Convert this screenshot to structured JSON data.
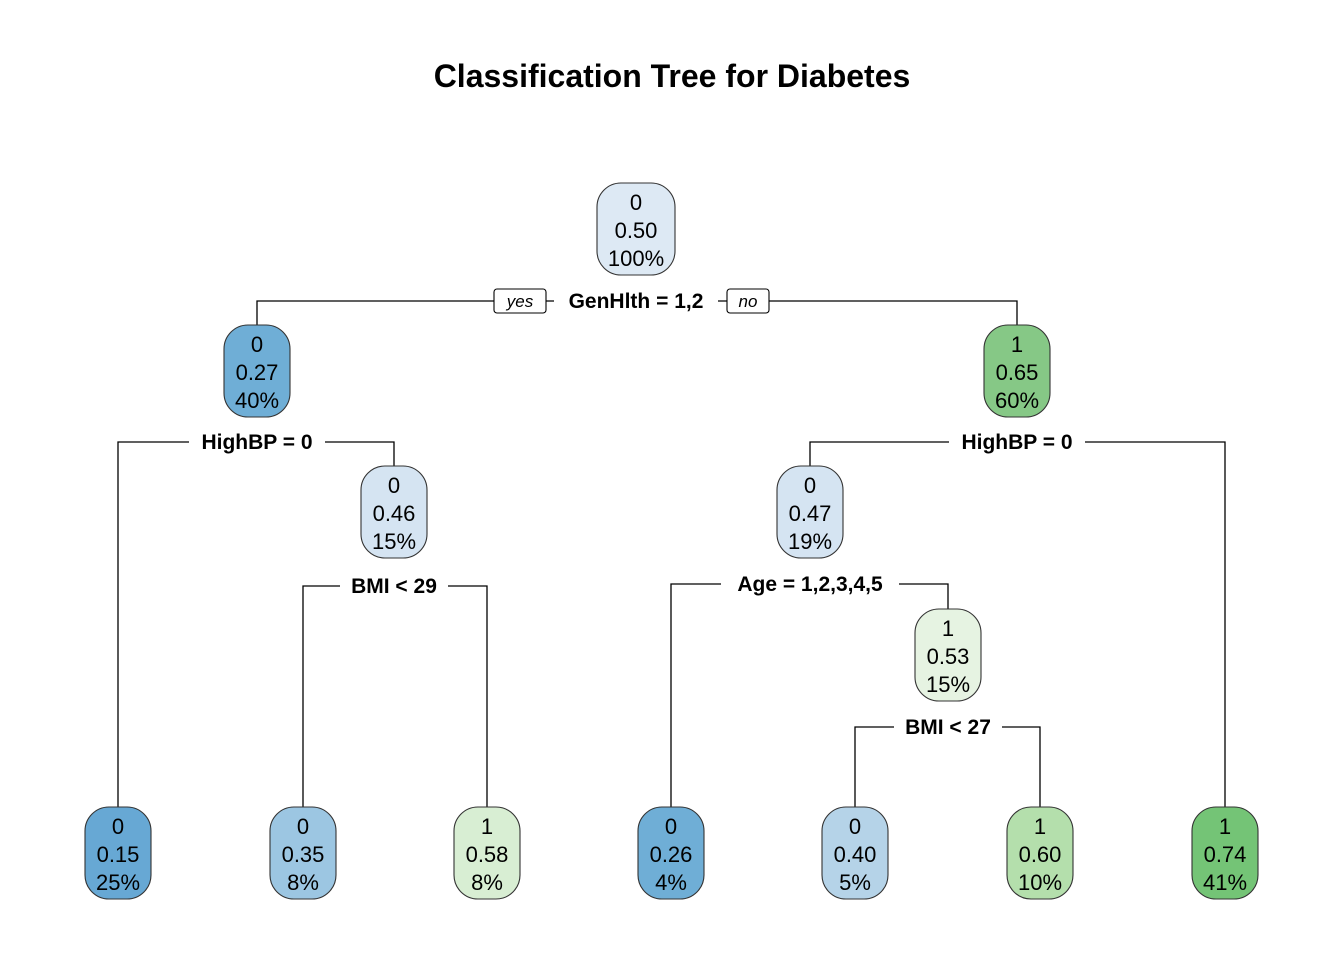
{
  "title": "Classification Tree for Diabetes",
  "edge_labels": {
    "yes": "yes",
    "no": "no"
  },
  "nodes": [
    {
      "id": "n1",
      "class": "0",
      "prob": "0.50",
      "pct": "100%",
      "color": "#dde9f4"
    },
    {
      "id": "n2",
      "class": "0",
      "prob": "0.27",
      "pct": "40%",
      "color": "#6faed6"
    },
    {
      "id": "n3",
      "class": "1",
      "prob": "0.65",
      "pct": "60%",
      "color": "#86c886"
    },
    {
      "id": "n4",
      "class": "0",
      "prob": "0.15",
      "pct": "25%",
      "color": "#67a8d4"
    },
    {
      "id": "n5",
      "class": "0",
      "prob": "0.46",
      "pct": "15%",
      "color": "#d5e4f2"
    },
    {
      "id": "n6",
      "class": "0",
      "prob": "0.47",
      "pct": "19%",
      "color": "#d5e4f2"
    },
    {
      "id": "n7",
      "class": "1",
      "prob": "0.74",
      "pct": "41%",
      "color": "#74c476"
    },
    {
      "id": "n10",
      "class": "0",
      "prob": "0.35",
      "pct": "8%",
      "color": "#9cc6e2"
    },
    {
      "id": "n11",
      "class": "1",
      "prob": "0.58",
      "pct": "8%",
      "color": "#d8eed3"
    },
    {
      "id": "n12",
      "class": "0",
      "prob": "0.26",
      "pct": "4%",
      "color": "#6faed6"
    },
    {
      "id": "n13",
      "class": "1",
      "prob": "0.53",
      "pct": "15%",
      "color": "#e6f3e2"
    },
    {
      "id": "n26",
      "class": "0",
      "prob": "0.40",
      "pct": "5%",
      "color": "#b5d3e8"
    },
    {
      "id": "n27",
      "class": "1",
      "prob": "0.60",
      "pct": "10%",
      "color": "#b4dfac"
    }
  ],
  "splits": [
    {
      "id": "s1",
      "label": "GenHlth = 1,2"
    },
    {
      "id": "s2",
      "label": "HighBP = 0"
    },
    {
      "id": "s3",
      "label": "HighBP = 0"
    },
    {
      "id": "s5",
      "label": "BMI < 29"
    },
    {
      "id": "s6",
      "label": "Age = 1,2,3,4,5"
    },
    {
      "id": "s13",
      "label": "BMI < 27"
    }
  ]
}
